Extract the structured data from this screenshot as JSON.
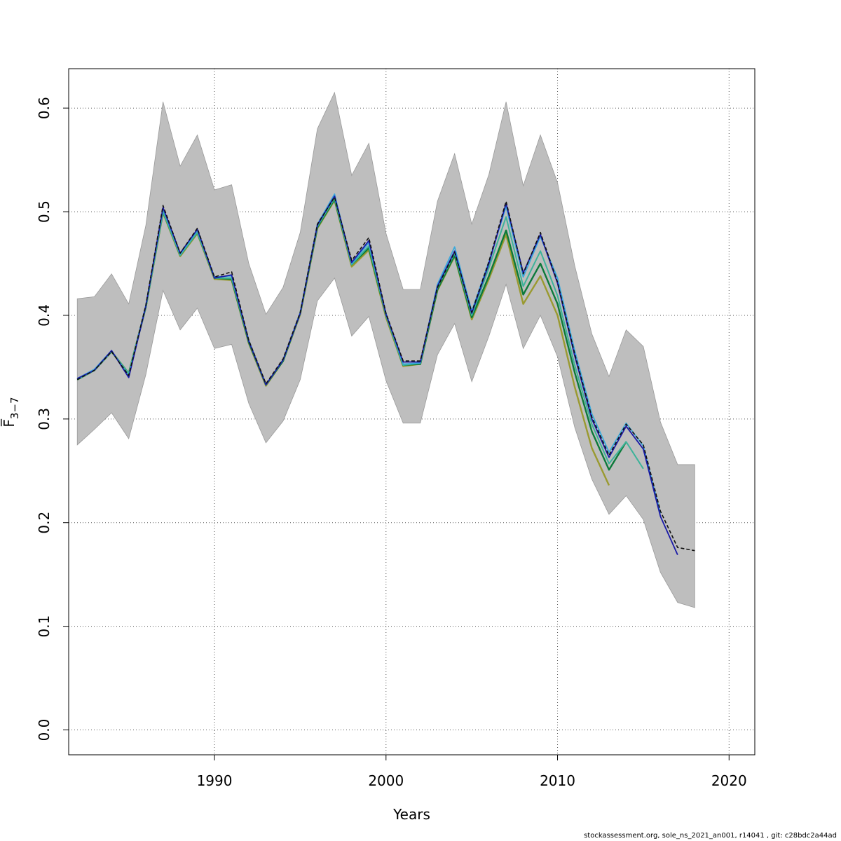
{
  "chart_data": {
    "type": "line",
    "title": "",
    "xlabel": "Years",
    "ylabel": "F̅",
    "ylabel_sub": "3−7",
    "xlim": [
      1981.5,
      2021.5
    ],
    "ylim": [
      -0.024,
      0.638
    ],
    "xticks": [
      1990,
      2000,
      2010,
      2020
    ],
    "yticks": [
      0.0,
      0.1,
      0.2,
      0.3,
      0.4,
      0.5,
      0.6
    ],
    "ytick_labels": [
      "0.0",
      "0.1",
      "0.2",
      "0.3",
      "0.4",
      "0.5",
      "0.6"
    ],
    "grid": true,
    "band": {
      "color": "#bebebe",
      "x": [
        1982,
        1983,
        1984,
        1985,
        1986,
        1987,
        1988,
        1989,
        1990,
        1991,
        1992,
        1993,
        1994,
        1995,
        1996,
        1997,
        1998,
        1999,
        2000,
        2001,
        2002,
        2003,
        2004,
        2005,
        2006,
        2007,
        2008,
        2009,
        2010,
        2011,
        2012,
        2013,
        2014,
        2015,
        2016,
        2017,
        2018
      ],
      "upper": [
        0.416,
        0.418,
        0.44,
        0.411,
        0.487,
        0.606,
        0.544,
        0.574,
        0.521,
        0.526,
        0.45,
        0.401,
        0.427,
        0.48,
        0.58,
        0.615,
        0.535,
        0.566,
        0.479,
        0.425,
        0.425,
        0.51,
        0.556,
        0.488,
        0.536,
        0.606,
        0.525,
        0.574,
        0.528,
        0.448,
        0.382,
        0.341,
        0.386,
        0.37,
        0.297,
        0.256,
        0.256
      ],
      "lower": [
        0.275,
        0.29,
        0.306,
        0.281,
        0.343,
        0.424,
        0.386,
        0.407,
        0.368,
        0.372,
        0.315,
        0.277,
        0.298,
        0.338,
        0.414,
        0.436,
        0.38,
        0.399,
        0.337,
        0.296,
        0.296,
        0.362,
        0.392,
        0.336,
        0.38,
        0.43,
        0.368,
        0.4,
        0.36,
        0.292,
        0.242,
        0.208,
        0.226,
        0.203,
        0.152,
        0.123,
        0.118
      ]
    },
    "series": [
      {
        "color": "#111111",
        "width": 1.6,
        "dash": "5,3",
        "x": [
          1982,
          1983,
          1984,
          1985,
          1986,
          1987,
          1988,
          1989,
          1990,
          1991,
          1992,
          1993,
          1994,
          1995,
          1996,
          1997,
          1998,
          1999,
          2000,
          2001,
          2002,
          2003,
          2004,
          2005,
          2006,
          2007,
          2008,
          2009,
          2010,
          2011,
          2012,
          2013,
          2014,
          2015,
          2016,
          2017,
          2018
        ],
        "values": [
          0.338,
          0.347,
          0.365,
          0.342,
          0.41,
          0.506,
          0.46,
          0.484,
          0.437,
          0.442,
          0.376,
          0.334,
          0.358,
          0.403,
          0.488,
          0.514,
          0.453,
          0.475,
          0.402,
          0.356,
          0.356,
          0.427,
          0.461,
          0.403,
          0.452,
          0.51,
          0.44,
          0.48,
          0.432,
          0.363,
          0.302,
          0.265,
          0.295,
          0.275,
          0.211,
          0.176,
          0.173
        ]
      },
      {
        "color": "#1a1aa8",
        "width": 1.8,
        "x": [
          1982,
          1983,
          1984,
          1985,
          1986,
          1987,
          1988,
          1989,
          1990,
          1991,
          1992,
          1993,
          1994,
          1995,
          1996,
          1997,
          1998,
          1999,
          2000,
          2001,
          2002,
          2003,
          2004,
          2005,
          2006,
          2007,
          2008,
          2009,
          2010,
          2011,
          2012,
          2013,
          2014,
          2015,
          2016,
          2017
        ],
        "values": [
          0.339,
          0.347,
          0.366,
          0.34,
          0.409,
          0.504,
          0.46,
          0.483,
          0.436,
          0.439,
          0.375,
          0.333,
          0.357,
          0.402,
          0.487,
          0.515,
          0.451,
          0.472,
          0.401,
          0.355,
          0.355,
          0.428,
          0.462,
          0.402,
          0.45,
          0.508,
          0.441,
          0.478,
          0.431,
          0.361,
          0.3,
          0.263,
          0.293,
          0.271,
          0.206,
          0.169
        ]
      },
      {
        "color": "#3aa9dc",
        "width": 1.8,
        "x": [
          1982,
          1983,
          1984,
          1985,
          1986,
          1987,
          1988,
          1989,
          1990,
          1991,
          1992,
          1993,
          1994,
          1995,
          1996,
          1997,
          1998,
          1999,
          2000,
          2001,
          2002,
          2003,
          2004,
          2005,
          2006,
          2007,
          2008,
          2009,
          2010,
          2011,
          2012,
          2013,
          2014,
          2015,
          2016
        ],
        "values": [
          0.339,
          0.348,
          0.366,
          0.341,
          0.41,
          0.503,
          0.459,
          0.482,
          0.437,
          0.438,
          0.376,
          0.333,
          0.357,
          0.403,
          0.488,
          0.517,
          0.45,
          0.47,
          0.402,
          0.353,
          0.354,
          0.43,
          0.466,
          0.404,
          0.452,
          0.505,
          0.437,
          0.476,
          0.436,
          0.366,
          0.305,
          0.268,
          0.296,
          0.274,
          0.209
        ]
      },
      {
        "color": "#3db39a",
        "width": 2.0,
        "x": [
          1982,
          1983,
          1984,
          1985,
          1986,
          1987,
          1988,
          1989,
          1990,
          1991,
          1992,
          1993,
          1994,
          1995,
          1996,
          1997,
          1998,
          1999,
          2000,
          2001,
          2002,
          2003,
          2004,
          2005,
          2006,
          2007,
          2008,
          2009,
          2010,
          2011,
          2012,
          2013,
          2014,
          2015
        ],
        "values": [
          0.338,
          0.347,
          0.365,
          0.344,
          0.408,
          0.5,
          0.458,
          0.48,
          0.436,
          0.436,
          0.375,
          0.333,
          0.357,
          0.402,
          0.486,
          0.513,
          0.449,
          0.467,
          0.4,
          0.352,
          0.354,
          0.427,
          0.46,
          0.4,
          0.446,
          0.495,
          0.428,
          0.462,
          0.419,
          0.352,
          0.295,
          0.257,
          0.278,
          0.252
        ]
      },
      {
        "color": "#0c7a3a",
        "width": 2.4,
        "x": [
          1982,
          1983,
          1984,
          1985,
          1986,
          1987,
          1988,
          1989,
          1990,
          1991,
          1992,
          1993,
          1994,
          1995,
          1996,
          1997,
          1998,
          1999,
          2000,
          2001,
          2002,
          2003,
          2004,
          2005,
          2006,
          2007,
          2008,
          2009,
          2010,
          2011,
          2012,
          2013,
          2014
        ],
        "values": [
          0.338,
          0.347,
          0.365,
          0.344,
          0.408,
          0.5,
          0.458,
          0.48,
          0.436,
          0.435,
          0.374,
          0.333,
          0.356,
          0.402,
          0.485,
          0.512,
          0.449,
          0.465,
          0.4,
          0.352,
          0.353,
          0.425,
          0.458,
          0.398,
          0.438,
          0.482,
          0.42,
          0.45,
          0.411,
          0.345,
          0.288,
          0.251,
          0.278
        ]
      },
      {
        "color": "#9a9a30",
        "width": 2.4,
        "x": [
          1982,
          1983,
          1984,
          1985,
          1986,
          1987,
          1988,
          1989,
          1990,
          1991,
          1992,
          1993,
          1994,
          1995,
          1996,
          1997,
          1998,
          1999,
          2000,
          2001,
          2002,
          2003,
          2004,
          2005,
          2006,
          2007,
          2008,
          2009,
          2010,
          2011,
          2012,
          2013
        ],
        "values": [
          0.338,
          0.347,
          0.365,
          0.344,
          0.408,
          0.499,
          0.457,
          0.479,
          0.435,
          0.434,
          0.373,
          0.332,
          0.356,
          0.401,
          0.484,
          0.511,
          0.447,
          0.463,
          0.398,
          0.351,
          0.353,
          0.424,
          0.457,
          0.396,
          0.435,
          0.478,
          0.411,
          0.438,
          0.4,
          0.331,
          0.272,
          0.236
        ]
      }
    ]
  },
  "footer": "stockassessment.org, sole_ns_2021_an001, r14041 , git: c28bdc2a44ad"
}
